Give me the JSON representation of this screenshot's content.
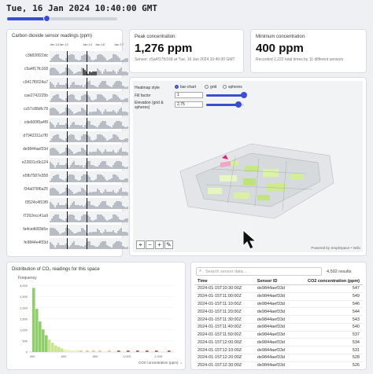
{
  "header": {
    "datetime": "Tue, 16 Jan 2024 10:40:00 GMT",
    "time_slider_fraction": 0.36
  },
  "sensor_panel": {
    "title": "Carbon dioxide sensor readings (ppm)",
    "date_ticks": [
      "Jan 10",
      "Jan 12",
      "Jan 14",
      "Jan 16",
      "Jan 17"
    ],
    "sensors": [
      "c3b826f22dc",
      "c5a4f17fc168",
      "c9417f0024a7",
      "cae2742225b",
      "cc57c88dfc78",
      "cde600f0a4f9",
      "d7942311a7f0",
      "de9844aef33d",
      "e22831c6b124",
      "e5fb7587e358",
      "f34a076f6a25",
      "f3524c4f10f9",
      "f7262ecc41a9",
      "fa4ced683b5e",
      "fe9844e4f33d"
    ]
  },
  "peak": {
    "title": "Peak concentration:",
    "value": "1,276 ppm",
    "detail": "Sensor: c5a4f17fc168 at Tue, 16 Jan 2024 10:40:00 GMT"
  },
  "minimum": {
    "title": "Minimum concentration:",
    "value": "400 ppm",
    "detail": "Recorded 2,222 total times by 11 different sensors"
  },
  "heatmap": {
    "style_label": "Heatmap style",
    "options": [
      "bar-chart",
      "grid",
      "spheres"
    ],
    "selected": "bar-chart",
    "fill_label": "Fill factor",
    "fill_value": "1",
    "fill_fraction": 1.0,
    "elevation_label": "Elevation (grid & spheres)",
    "elevation_value": "2.75",
    "elevation_fraction": 0.85,
    "credit": "Powered by Smplrspace • Vello",
    "tools": [
      "⌖",
      "−",
      "+",
      "✎"
    ]
  },
  "distribution": {
    "title": "Distribution of CO₂ readings for this space",
    "ylabel": "Frequency",
    "xlabel": "CO2 concentration (ppm) →"
  },
  "chart_data": {
    "type": "bar",
    "title": "Distribution of CO₂ readings for this space",
    "xlabel": "CO2 concentration (ppm)",
    "ylabel": "Frequency",
    "x_ticks": [
      400,
      600,
      800,
      1000,
      1200
    ],
    "y_ticks": [
      0,
      500,
      1000,
      1500,
      2000,
      2500,
      3000
    ],
    "ylim": [
      0,
      3200
    ],
    "bins": [
      {
        "x": 400,
        "y": 2900
      },
      {
        "x": 420,
        "y": 1950
      },
      {
        "x": 440,
        "y": 1380
      },
      {
        "x": 460,
        "y": 1020
      },
      {
        "x": 480,
        "y": 760
      },
      {
        "x": 500,
        "y": 560
      },
      {
        "x": 520,
        "y": 420
      },
      {
        "x": 540,
        "y": 300
      },
      {
        "x": 560,
        "y": 230
      },
      {
        "x": 580,
        "y": 160
      },
      {
        "x": 600,
        "y": 120
      },
      {
        "x": 620,
        "y": 90
      },
      {
        "x": 640,
        "y": 70
      },
      {
        "x": 660,
        "y": 55
      },
      {
        "x": 680,
        "y": 40
      },
      {
        "x": 700,
        "y": 30
      },
      {
        "x": 740,
        "y": 25
      },
      {
        "x": 780,
        "y": 20
      },
      {
        "x": 820,
        "y": 15
      },
      {
        "x": 880,
        "y": 10
      },
      {
        "x": 940,
        "y": 10
      },
      {
        "x": 1000,
        "y": 8
      },
      {
        "x": 1060,
        "y": 6
      },
      {
        "x": 1120,
        "y": 6
      },
      {
        "x": 1180,
        "y": 5
      },
      {
        "x": 1260,
        "y": 4
      }
    ]
  },
  "table": {
    "search_placeholder": "Search sensor data...",
    "result_count": "4,592 results",
    "columns": [
      "Time",
      "Sensor ID",
      "CO2 concentration (ppm)"
    ],
    "rows": [
      [
        "2024-01-15T10:30:00Z",
        "de9844aef33d",
        "547"
      ],
      [
        "2024-01-15T11:00:00Z",
        "de9844aef33d",
        "549"
      ],
      [
        "2024-01-15T11:10:00Z",
        "de9844aef33d",
        "546"
      ],
      [
        "2024-01-15T11:20:00Z",
        "de9844aef33d",
        "544"
      ],
      [
        "2024-01-15T11:30:00Z",
        "de9844aef33d",
        "543"
      ],
      [
        "2024-01-15T11:40:00Z",
        "de9844aef33d",
        "540"
      ],
      [
        "2024-01-15T11:50:00Z",
        "de9844aef33d",
        "537"
      ],
      [
        "2024-01-15T12:00:00Z",
        "de9844aef33d",
        "534"
      ],
      [
        "2024-01-15T12:10:00Z",
        "de9844aef33d",
        "531"
      ],
      [
        "2024-01-15T12:20:00Z",
        "de9844aef33d",
        "528"
      ],
      [
        "2024-01-15T12:30:00Z",
        "de9844aef33d",
        "526"
      ],
      [
        "2024-01-15T12:40:00Z",
        "de9844aef33d",
        "526"
      ]
    ]
  }
}
